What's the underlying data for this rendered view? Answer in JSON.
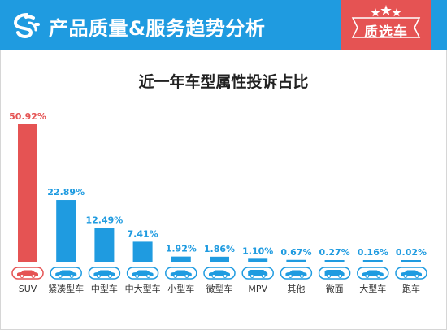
{
  "header": {
    "title": "产品质量&服务趋势分析",
    "badge": "质选车",
    "logo_icon": "brand-s-logo-icon",
    "badge_icon": "three-stars-icon"
  },
  "colors": {
    "header_bg": "#1f9be0",
    "badge_bg": "#e55353",
    "highlight_bar": "#e55353",
    "bar": "#1f9be0",
    "highlight_label": "#e55353",
    "label": "#1f9be0"
  },
  "chart_data": {
    "type": "bar",
    "title": "近一年车型属性投诉占比",
    "xlabel": "",
    "ylabel": "",
    "categories": [
      "SUV",
      "紧凑型车",
      "中型车",
      "中大型车",
      "小型车",
      "微型车",
      "MPV",
      "其他",
      "微面",
      "大型车",
      "跑车"
    ],
    "values": [
      50.92,
      22.89,
      12.49,
      7.41,
      1.92,
      1.86,
      1.1,
      0.67,
      0.27,
      0.16,
      0.02
    ],
    "value_labels": [
      "50.92%",
      "22.89%",
      "12.49%",
      "7.41%",
      "1.92%",
      "1.86%",
      "1.10%",
      "0.67%",
      "0.27%",
      "0.16%",
      "0.02%"
    ],
    "unit": "%",
    "ylim": [
      0,
      55
    ],
    "grid": false,
    "legend": "none",
    "highlight_index": 0,
    "category_icons": [
      "car-icon",
      "car-icon",
      "car-icon",
      "car-icon",
      "car-icon",
      "car-icon",
      "van-icon",
      "car-icon",
      "van-icon",
      "car-icon",
      "car-icon"
    ]
  }
}
